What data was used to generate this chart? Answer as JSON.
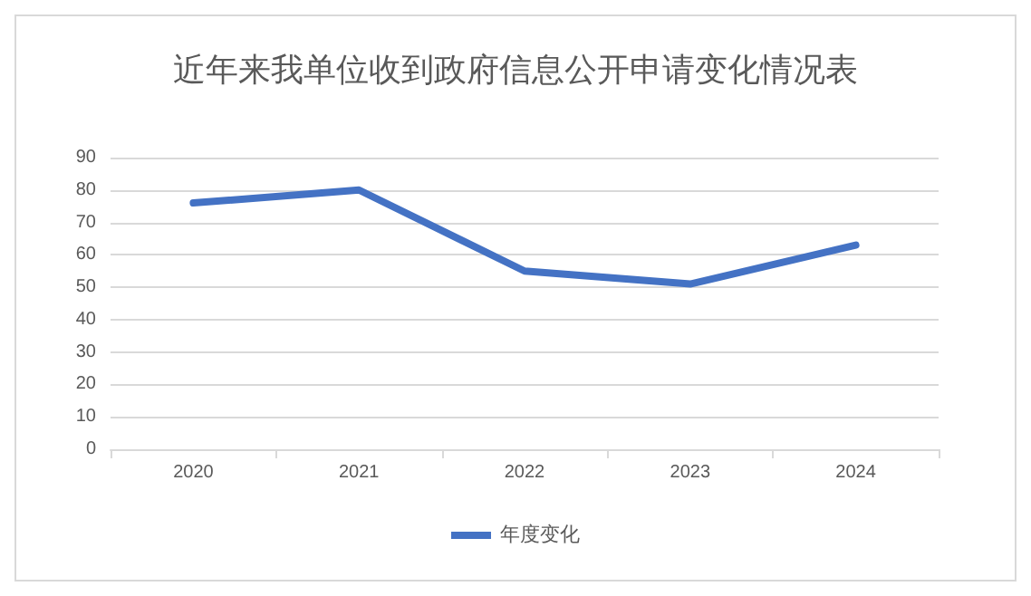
{
  "chart_data": {
    "type": "line",
    "title": "近年来我单位收到政府信息公开申请变化情况表",
    "categories": [
      "2020",
      "2021",
      "2022",
      "2023",
      "2024"
    ],
    "series": [
      {
        "name": "年度变化",
        "color": "#4472c4",
        "values": [
          76,
          80,
          55,
          51,
          63
        ]
      }
    ],
    "ylim": [
      0,
      90
    ],
    "yticks": [
      0,
      10,
      20,
      30,
      40,
      50,
      60,
      70,
      80,
      90
    ],
    "grid": "y",
    "legend": "bottom",
    "marker": "none",
    "line_style": "solid"
  }
}
